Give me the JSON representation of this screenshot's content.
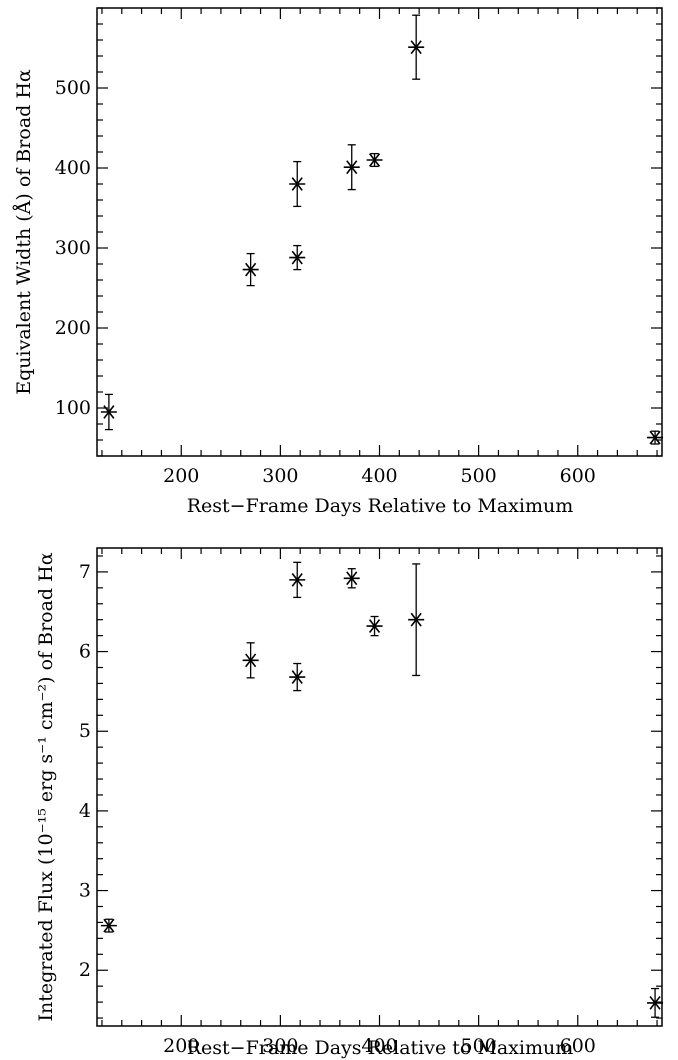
{
  "chart_data": [
    {
      "type": "scatter",
      "xlabel": "Rest−Frame Days Relative to Maximum",
      "ylabel": "Equivalent Width (Å) of Broad Hα",
      "xlim": [
        115,
        685
      ],
      "ylim": [
        40,
        600
      ],
      "xticks": [
        200,
        300,
        400,
        500,
        600
      ],
      "yticks": [
        100,
        200,
        300,
        400,
        500
      ],
      "xminor": 20,
      "yminor": 20,
      "grid": false,
      "marker": "asterisk",
      "points": [
        {
          "x": 127,
          "y": 95,
          "err": 22
        },
        {
          "x": 270,
          "y": 273,
          "err": 20
        },
        {
          "x": 317,
          "y": 288,
          "err": 15
        },
        {
          "x": 317,
          "y": 380,
          "err": 28
        },
        {
          "x": 372,
          "y": 401,
          "err": 28
        },
        {
          "x": 395,
          "y": 410,
          "err": 8
        },
        {
          "x": 437,
          "y": 551,
          "err": 40
        },
        {
          "x": 678,
          "y": 63,
          "err": 8
        }
      ]
    },
    {
      "type": "scatter",
      "xlabel": "Rest−Frame Days Relative to Maximum",
      "ylabel": "Integrated Flux (10⁻¹⁵ erg s⁻¹ cm⁻²) of Broad Hα",
      "xlim": [
        115,
        685
      ],
      "ylim": [
        1.3,
        7.3
      ],
      "xticks": [
        200,
        300,
        400,
        500,
        600
      ],
      "yticks": [
        2,
        3,
        4,
        5,
        6,
        7
      ],
      "xminor": 20,
      "yminor": 0.2,
      "grid": false,
      "marker": "asterisk",
      "points": [
        {
          "x": 127,
          "y": 2.56,
          "err": 0.08
        },
        {
          "x": 270,
          "y": 5.89,
          "err": 0.22
        },
        {
          "x": 317,
          "y": 5.68,
          "err": 0.17
        },
        {
          "x": 317,
          "y": 6.9,
          "err": 0.22
        },
        {
          "x": 372,
          "y": 6.92,
          "err": 0.12
        },
        {
          "x": 395,
          "y": 6.32,
          "err": 0.12
        },
        {
          "x": 437,
          "y": 6.4,
          "err": 0.7
        },
        {
          "x": 678,
          "y": 1.59,
          "err": 0.18
        }
      ]
    }
  ]
}
